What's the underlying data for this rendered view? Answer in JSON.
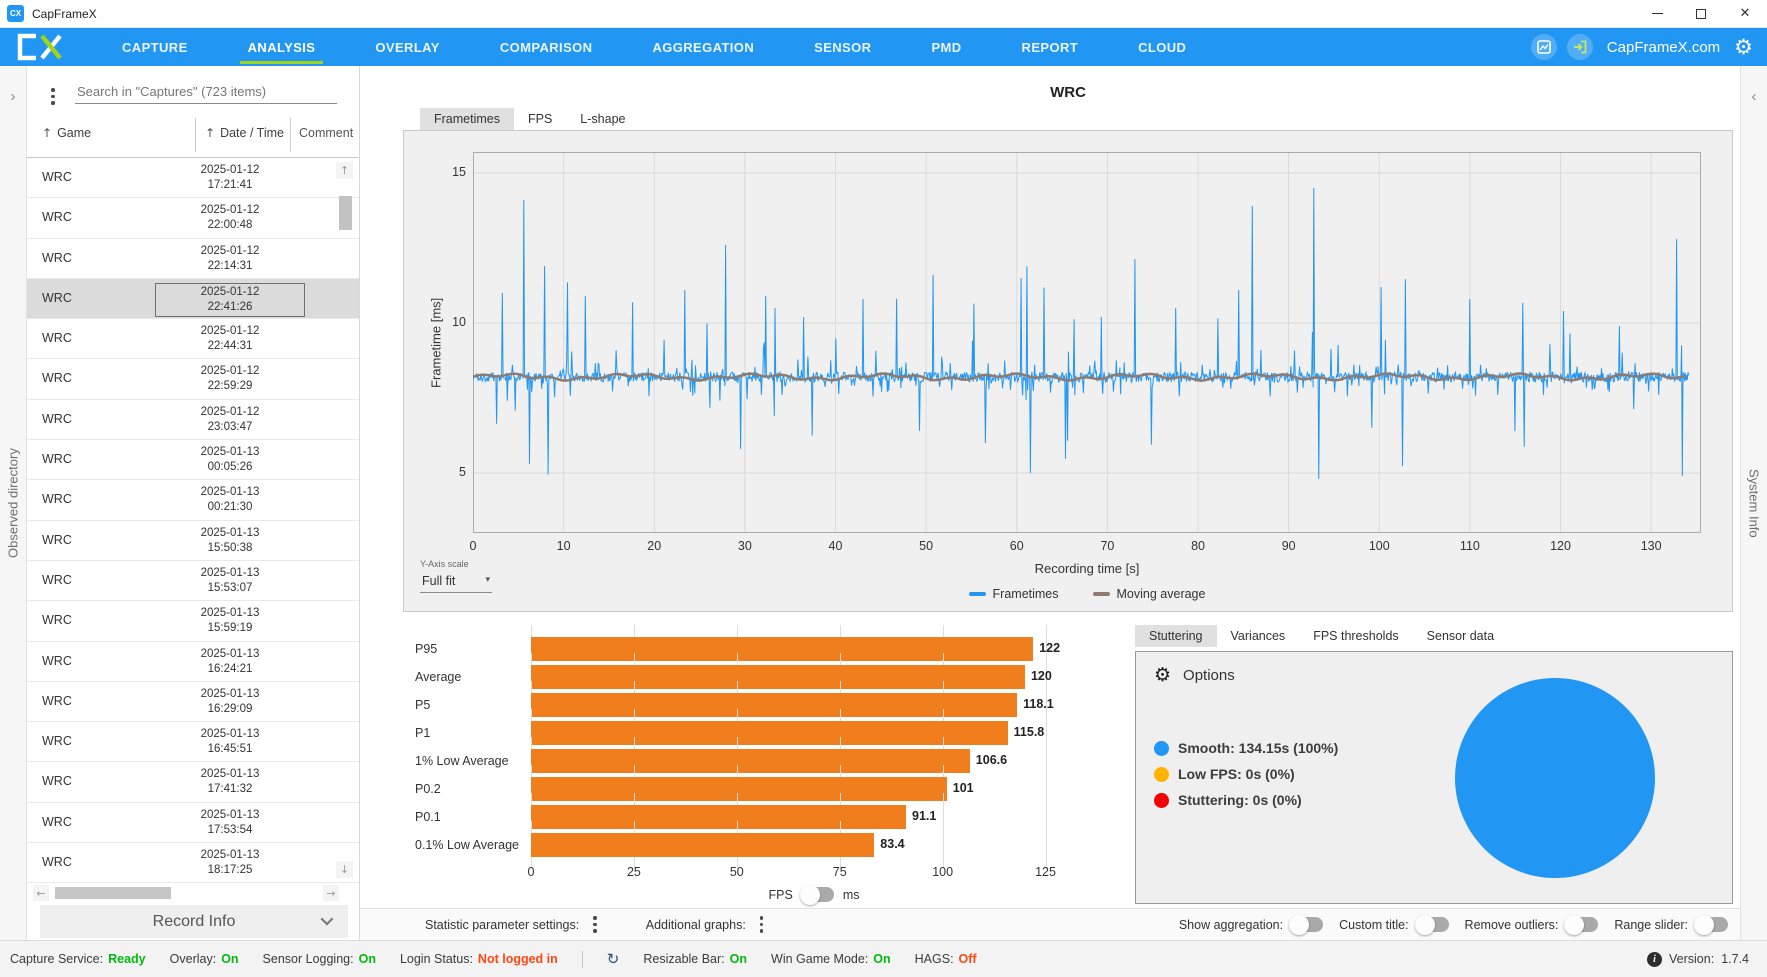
{
  "colors": {
    "accent_blue": "#2196F3",
    "lime_underline": "#A2D414",
    "bar_orange": "#F07E1D",
    "frametimes_line": "#2196F3",
    "moving_average_line": "#8D7B70",
    "legend_low_fps": "#FFB300",
    "legend_stuttering": "#F40000",
    "status_green": "#00BA10",
    "status_red": "#FF4613"
  },
  "icons": {
    "sort_asc": "↑",
    "dropdown_caret": "▾",
    "gear": "⚙",
    "info": "i",
    "refresh": "↻",
    "arrow_up": "↑",
    "arrow_down": "↓",
    "arrow_left": "←",
    "arrow_right": "→",
    "chevron_right": "›",
    "chevron_left": "‹",
    "window_close": "✕",
    "brand_text": "CX"
  },
  "window": {
    "title": "CapFrameX"
  },
  "nav": {
    "items": [
      {
        "label": "CAPTURE",
        "active": false
      },
      {
        "label": "ANALYSIS",
        "active": true
      },
      {
        "label": "OVERLAY",
        "active": false
      },
      {
        "label": "COMPARISON",
        "active": false
      },
      {
        "label": "AGGREGATION",
        "active": false
      },
      {
        "label": "SENSOR",
        "active": false
      },
      {
        "label": "PMD",
        "active": false
      },
      {
        "label": "REPORT",
        "active": false
      },
      {
        "label": "CLOUD",
        "active": false
      }
    ],
    "site_link": "CapFrameX.com"
  },
  "left_rail": {
    "label": "Observed directory"
  },
  "right_rail": {
    "label": "System Info"
  },
  "sidebar": {
    "search_placeholder": "Search in \"Captures\" (723 items)",
    "columns": [
      {
        "label": "Game",
        "sortable": true
      },
      {
        "label": "Date / Time",
        "sortable": true
      },
      {
        "label": "Comment",
        "sortable": false
      }
    ],
    "selected_index": 3,
    "rows": [
      {
        "game": "WRC",
        "date": "2025-01-12",
        "time": "17:21:41"
      },
      {
        "game": "WRC",
        "date": "2025-01-12",
        "time": "22:00:48"
      },
      {
        "game": "WRC",
        "date": "2025-01-12",
        "time": "22:14:31"
      },
      {
        "game": "WRC",
        "date": "2025-01-12",
        "time": "22:41:26"
      },
      {
        "game": "WRC",
        "date": "2025-01-12",
        "time": "22:44:31"
      },
      {
        "game": "WRC",
        "date": "2025-01-12",
        "time": "22:59:29"
      },
      {
        "game": "WRC",
        "date": "2025-01-12",
        "time": "23:03:47"
      },
      {
        "game": "WRC",
        "date": "2025-01-13",
        "time": "00:05:26"
      },
      {
        "game": "WRC",
        "date": "2025-01-13",
        "time": "00:21:30"
      },
      {
        "game": "WRC",
        "date": "2025-01-13",
        "time": "15:50:38"
      },
      {
        "game": "WRC",
        "date": "2025-01-13",
        "time": "15:53:07"
      },
      {
        "game": "WRC",
        "date": "2025-01-13",
        "time": "15:59:19"
      },
      {
        "game": "WRC",
        "date": "2025-01-13",
        "time": "16:24:21"
      },
      {
        "game": "WRC",
        "date": "2025-01-13",
        "time": "16:29:09"
      },
      {
        "game": "WRC",
        "date": "2025-01-13",
        "time": "16:45:51"
      },
      {
        "game": "WRC",
        "date": "2025-01-13",
        "time": "17:41:32"
      },
      {
        "game": "WRC",
        "date": "2025-01-13",
        "time": "17:53:54"
      },
      {
        "game": "WRC",
        "date": "2025-01-13",
        "time": "18:17:25"
      }
    ],
    "record_info_label": "Record Info"
  },
  "analysis": {
    "record_title": "WRC",
    "chart_tabs": [
      {
        "label": "Frametimes",
        "active": true
      },
      {
        "label": "FPS",
        "active": false
      },
      {
        "label": "L-shape",
        "active": false
      }
    ],
    "y_scale_label": "Y-Axis scale",
    "y_scale_value": "Full fit",
    "legend": [
      {
        "label": "Frametimes",
        "color": "#2196F3"
      },
      {
        "label": "Moving average",
        "color": "#8D7B70"
      }
    ]
  },
  "chart_data": [
    {
      "id": "frametimes-graph",
      "type": "line",
      "title": "WRC",
      "xlabel": "Recording time [s]",
      "ylabel": "Frametime [ms]",
      "x_ticks": [
        0,
        10,
        20,
        30,
        40,
        50,
        60,
        70,
        80,
        90,
        100,
        110,
        120,
        130
      ],
      "y_ticks": [
        5,
        10,
        15
      ],
      "x_domain": [
        0,
        135.5
      ],
      "y_domain": [
        3.0,
        15.7
      ],
      "grid": true,
      "legend_position": "bottom-center",
      "series": [
        {
          "name": "Frametimes",
          "color": "#2196F3",
          "style": "noisy-spikes",
          "duration_s": 134.15,
          "baseline_ms": 8.2,
          "noise_ms": 0.16,
          "points": 1700,
          "seed": 1337,
          "spike_up_prob": 0.02,
          "spike_down_prob": 0.013,
          "spike_up_max": 5.4,
          "spike_down_max": 3.0,
          "major_spikes": [
            {
              "t": 3.2,
              "v": 11.0
            },
            {
              "t": 5.6,
              "v": 14.1
            },
            {
              "t": 6.2,
              "v": 5.3
            },
            {
              "t": 7.9,
              "v": 11.9
            },
            {
              "t": 8.3,
              "v": 4.95
            },
            {
              "t": 12.4,
              "v": 10.9
            },
            {
              "t": 23.4,
              "v": 11.1
            },
            {
              "t": 27.9,
              "v": 12.6
            },
            {
              "t": 29.5,
              "v": 5.8
            },
            {
              "t": 32.3,
              "v": 10.9
            },
            {
              "t": 33.3,
              "v": 10.5
            },
            {
              "t": 36.5,
              "v": 10.2
            },
            {
              "t": 43.0,
              "v": 10.8
            },
            {
              "t": 50.8,
              "v": 11.6
            },
            {
              "t": 56.5,
              "v": 6.0
            },
            {
              "t": 60.5,
              "v": 11.5
            },
            {
              "t": 61.5,
              "v": 5.0
            },
            {
              "t": 69.3,
              "v": 10.2
            },
            {
              "t": 77.5,
              "v": 10.5
            },
            {
              "t": 84.5,
              "v": 11.1
            },
            {
              "t": 86.0,
              "v": 13.9
            },
            {
              "t": 92.8,
              "v": 14.5
            },
            {
              "t": 93.3,
              "v": 4.8
            },
            {
              "t": 100.2,
              "v": 11.2
            },
            {
              "t": 110.0,
              "v": 10.8
            },
            {
              "t": 120.3,
              "v": 10.4
            },
            {
              "t": 126.5,
              "v": 9.9
            },
            {
              "t": 132.8,
              "v": 12.8
            },
            {
              "t": 133.4,
              "v": 4.9
            }
          ]
        },
        {
          "name": "Moving average",
          "color": "#8D7B70",
          "style": "flat",
          "baseline_ms": 8.2
        }
      ]
    },
    {
      "id": "fps-percentiles",
      "type": "bar",
      "orientation": "horizontal",
      "categories": [
        "P95",
        "Average",
        "P5",
        "P1",
        "1% Low Average",
        "P0.2",
        "P0.1",
        "0.1% Low Average"
      ],
      "values": [
        122,
        120,
        118.1,
        115.8,
        106.6,
        101,
        91.1,
        83.4
      ],
      "value_labels": [
        "122",
        "120",
        "118.1",
        "115.8",
        "106.6",
        "101",
        "91.1",
        "83.4"
      ],
      "x_ticks": [
        0,
        25,
        50,
        75,
        100,
        125
      ],
      "x_max": 137.5,
      "xlabel_unit": "FPS",
      "bar_color": "#F07E1D",
      "unit_toggle": {
        "left": "FPS",
        "right": "ms",
        "selected": "FPS"
      }
    },
    {
      "id": "stuttering-pie",
      "type": "pie",
      "slices": [
        {
          "label": "Smooth",
          "seconds": 134.15,
          "percent": 100,
          "color": "#2196F3"
        },
        {
          "label": "Low FPS",
          "seconds": 0,
          "percent": 0,
          "color": "#FFB300"
        },
        {
          "label": "Stuttering",
          "seconds": 0,
          "percent": 0,
          "color": "#F40000"
        }
      ]
    }
  ],
  "stutter_panel": {
    "tabs": [
      {
        "label": "Stuttering",
        "active": true
      },
      {
        "label": "Variances",
        "active": false
      },
      {
        "label": "FPS thresholds",
        "active": false
      },
      {
        "label": "Sensor data",
        "active": false
      }
    ],
    "options_label": "Options",
    "legend": [
      {
        "label": "Smooth:",
        "value": "134.15s (100%)",
        "color": "#2196F3"
      },
      {
        "label": "Low FPS:",
        "value": "0s (0%)",
        "color": "#FFB300"
      },
      {
        "label": "Stuttering:",
        "value": "0s (0%)",
        "color": "#F40000"
      }
    ]
  },
  "footer": {
    "stat_settings_label": "Statistic parameter settings:",
    "additional_graphs_label": "Additional graphs:",
    "toggles": [
      {
        "label": "Show aggregation:",
        "on": false
      },
      {
        "label": "Custom title:",
        "on": false
      },
      {
        "label": "Remove outliers:",
        "on": false
      },
      {
        "label": "Range slider:",
        "on": false
      }
    ]
  },
  "statusbar": {
    "items": [
      {
        "label": "Capture Service:",
        "value": "Ready",
        "state": "good"
      },
      {
        "label": "Overlay:",
        "value": "On",
        "state": "good"
      },
      {
        "label": "Sensor Logging:",
        "value": "On",
        "state": "good"
      },
      {
        "label": "Login Status:",
        "value": "Not logged in",
        "state": "bad"
      },
      {
        "label": "Resizable Bar:",
        "value": "On",
        "state": "good",
        "divider_before": true,
        "icon_before": "refresh"
      },
      {
        "label": "Win Game Mode:",
        "value": "On",
        "state": "good"
      },
      {
        "label": "HAGS:",
        "value": "Off",
        "state": "bad"
      }
    ],
    "version_label": "Version:",
    "version_value": "1.7.4"
  }
}
